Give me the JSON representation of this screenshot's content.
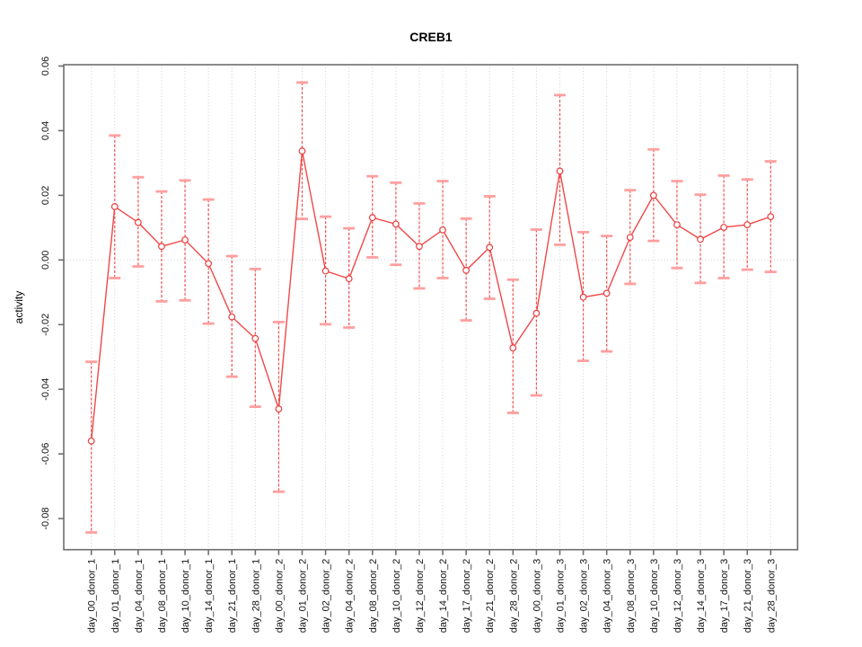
{
  "title": "CREB1",
  "colors": {
    "series_line": "#f04747",
    "marker_stroke": "#ea3c3c",
    "marker_fill": "#ffffff",
    "error_bar_line": "#ef5252",
    "error_bar_cap": "#ff9f9f",
    "gridline": "#cfcfcf",
    "axis_box": "#6e6e6e",
    "tick_text": "#111111",
    "background": "#ffffff"
  },
  "chart_data": {
    "type": "line",
    "title": "CREB1",
    "xlabel": "",
    "ylabel": "activity",
    "ylim": [
      -0.09,
      0.0605
    ],
    "yticks": [
      0.06,
      0.04,
      0.02,
      0,
      -0.02,
      -0.04,
      -0.06,
      -0.08
    ],
    "grid": "vertical dotted gridline at every category; dotted horizontal line at y=0",
    "legend": "none",
    "marker": "open-circle",
    "error_bars": true,
    "categories": [
      "day_00_donor_1",
      "day_01_donor_1",
      "day_04_donor_1",
      "day_08_donor_1",
      "day_10_donor_1",
      "day_14_donor_1",
      "day_21_donor_1",
      "day_28_donor_1",
      "day_00_donor_2",
      "day_01_donor_2",
      "day_02_donor_2",
      "day_04_donor_2",
      "day_08_donor_2",
      "day_10_donor_2",
      "day_12_donor_2",
      "day_14_donor_2",
      "day_17_donor_2",
      "day_21_donor_2",
      "day_28_donor_2",
      "day_00_donor_3",
      "day_01_donor_3",
      "day_02_donor_3",
      "day_04_donor_3",
      "day_08_donor_3",
      "day_10_donor_3",
      "day_12_donor_3",
      "day_14_donor_3",
      "day_17_donor_3",
      "day_21_donor_3",
      "day_28_donor_3"
    ],
    "series": [
      {
        "name": "CREB1 activity",
        "values": [
          -0.056,
          0.0165,
          0.0116,
          0.0042,
          0.0062,
          -0.0011,
          -0.0176,
          -0.0243,
          -0.0461,
          0.0337,
          -0.0034,
          -0.0058,
          0.0131,
          0.0111,
          0.0042,
          0.0093,
          -0.0032,
          0.0039,
          -0.0272,
          -0.0165,
          0.0275,
          -0.0115,
          -0.0103,
          0.007,
          0.02,
          0.0109,
          0.0064,
          0.0101,
          0.0109,
          0.0134
        ],
        "upper": [
          -0.0315,
          0.0385,
          0.0256,
          0.0212,
          0.0246,
          0.0187,
          0.0012,
          -0.0028,
          -0.0192,
          0.0549,
          0.0134,
          0.0098,
          0.0259,
          0.0239,
          0.0175,
          0.0244,
          0.0128,
          0.0197,
          -0.0061,
          0.0094,
          0.051,
          0.0086,
          0.0074,
          0.0216,
          0.0342,
          0.0244,
          0.0202,
          0.0261,
          0.0249,
          0.0305
        ],
        "lower": [
          -0.0843,
          -0.0056,
          -0.002,
          -0.0128,
          -0.0125,
          -0.0197,
          -0.0361,
          -0.0454,
          -0.0717,
          0.0127,
          -0.0199,
          -0.0209,
          0.0008,
          -0.0015,
          -0.0088,
          -0.0056,
          -0.0187,
          -0.012,
          -0.0473,
          -0.0419,
          0.0047,
          -0.0312,
          -0.0283,
          -0.0074,
          0.0059,
          -0.0025,
          -0.0071,
          -0.0056,
          -0.003,
          -0.0037
        ]
      }
    ]
  }
}
